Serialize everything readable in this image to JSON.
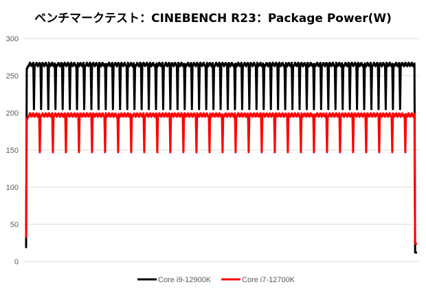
{
  "chart_data": {
    "type": "line",
    "title": "ベンチマークテスト：CINEBENCH R23：Package Power(W)",
    "xlabel": "",
    "ylabel": "",
    "ylim": [
      0,
      300
    ],
    "yticks": [
      0,
      50,
      100,
      150,
      200,
      250,
      300
    ],
    "grid": "horizontal",
    "legend": "bottom",
    "points_per_series": 600,
    "series": [
      {
        "name": "Core i9-12900K",
        "color": "#000000",
        "start_value": 18,
        "plateau": 265,
        "dip_value": 205,
        "dip_period": 11,
        "dip_count": 52,
        "end_value": 12
      },
      {
        "name": "Core i7-12700K",
        "color": "#ff0000",
        "start_value": 32,
        "plateau": 197,
        "dip_value": 147,
        "dip_period": 20,
        "dip_count": 29,
        "end_value": 24
      }
    ]
  }
}
